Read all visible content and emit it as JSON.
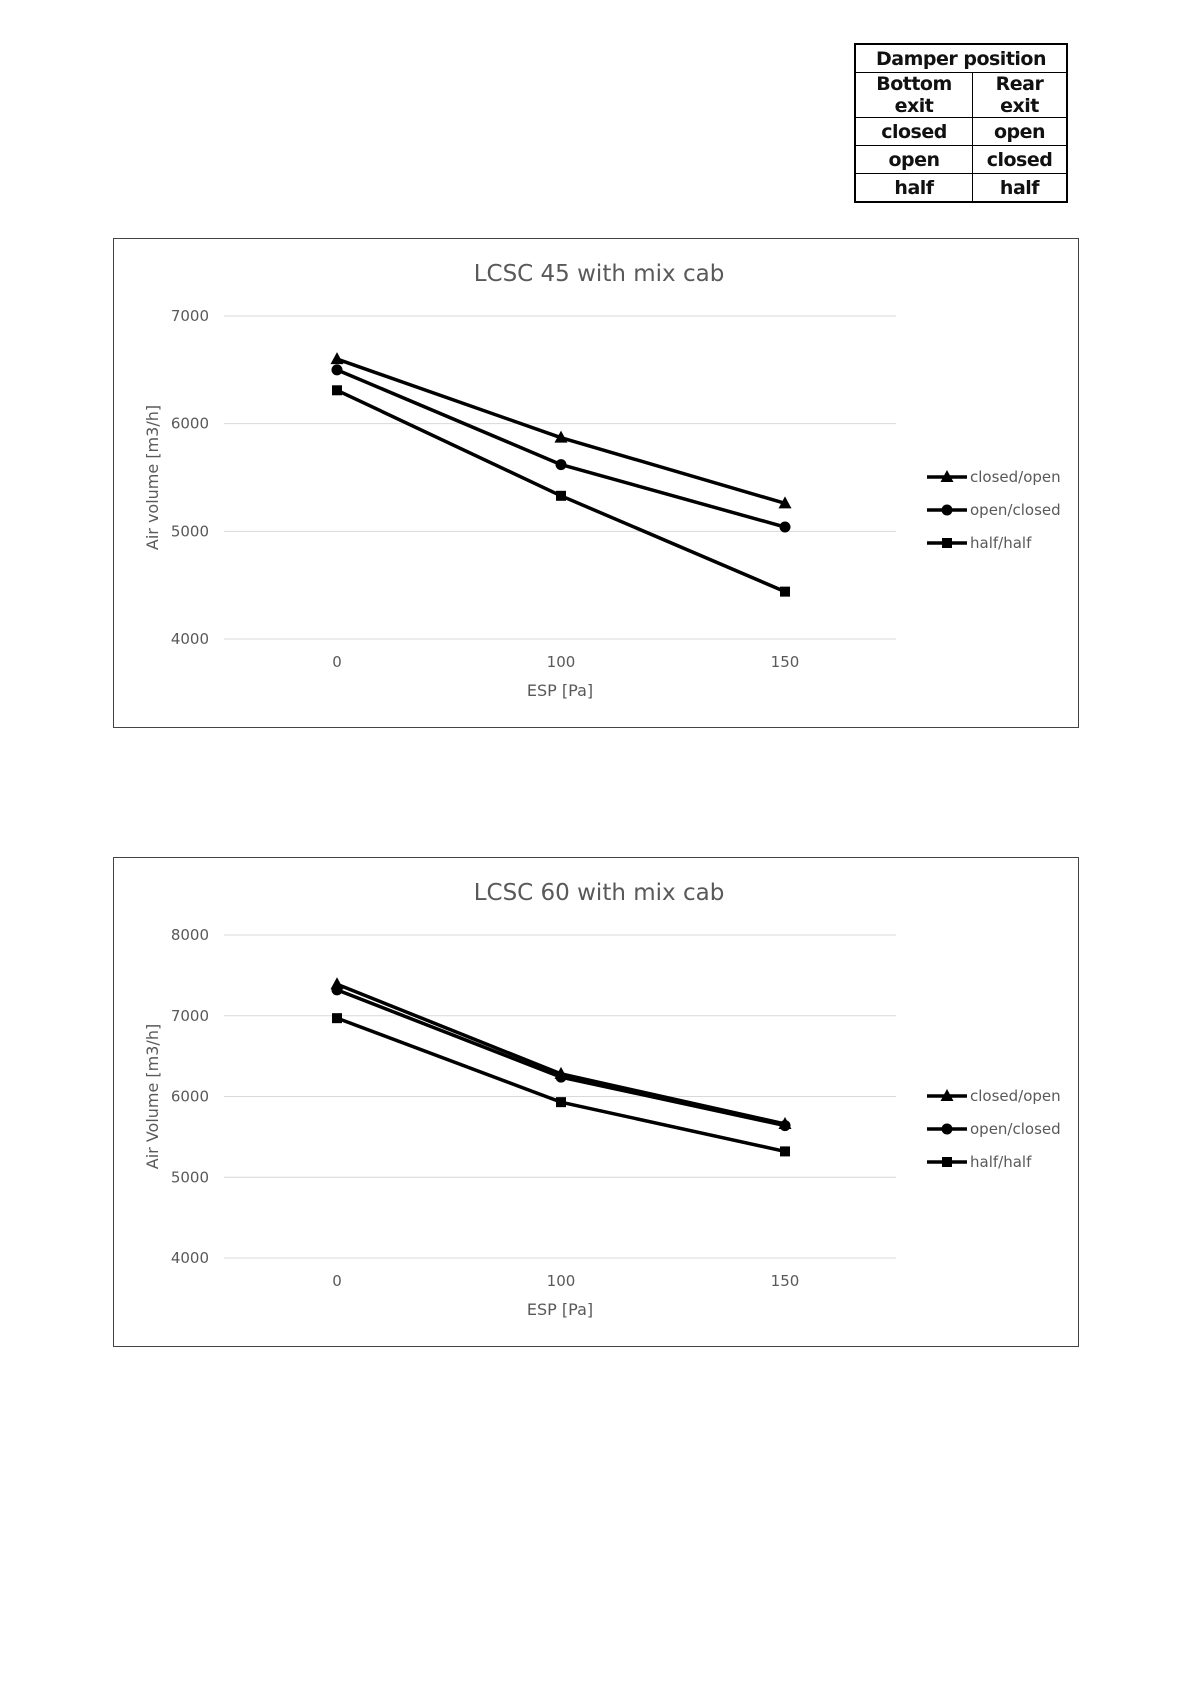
{
  "damper_table": {
    "header": "Damper position",
    "col1": "Bottom exit",
    "col2": "Rear exit",
    "rows": [
      [
        "closed",
        "open"
      ],
      [
        "open",
        "closed"
      ],
      [
        "half",
        "half"
      ]
    ]
  },
  "chart_data": [
    {
      "type": "line",
      "title": "LCSC 45 with mix cab",
      "xlabel": "ESP [Pa]",
      "ylabel": "Air volume [m3/h]",
      "categories": [
        "0",
        "100",
        "150"
      ],
      "ylim": [
        4000,
        7000
      ],
      "yticks": [
        "4000",
        "5000",
        "6000",
        "7000"
      ],
      "grid": true,
      "legend_position": "right",
      "series": [
        {
          "name": "closed/open",
          "marker": "triangle",
          "values": [
            6600,
            5870,
            5260
          ]
        },
        {
          "name": "open/closed",
          "marker": "circle",
          "values": [
            6500,
            5620,
            5040
          ]
        },
        {
          "name": "half/half",
          "marker": "square",
          "values": [
            6310,
            5330,
            4440
          ]
        }
      ]
    },
    {
      "type": "line",
      "title": "LCSC 60 with mix cab",
      "xlabel": "ESP [Pa]",
      "ylabel": "Air Volume [m3/h]",
      "categories": [
        "0",
        "100",
        "150"
      ],
      "ylim": [
        4000,
        8000
      ],
      "yticks": [
        "4000",
        "5000",
        "6000",
        "7000",
        "8000"
      ],
      "grid": true,
      "legend_position": "right",
      "series": [
        {
          "name": "closed/open",
          "marker": "triangle",
          "values": [
            7390,
            6280,
            5660
          ]
        },
        {
          "name": "open/closed",
          "marker": "circle",
          "values": [
            7320,
            6240,
            5640
          ]
        },
        {
          "name": "half/half",
          "marker": "square",
          "values": [
            6970,
            5930,
            5320
          ]
        }
      ]
    }
  ]
}
